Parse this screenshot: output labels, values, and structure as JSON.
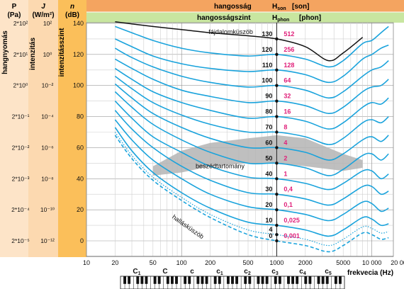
{
  "header": {
    "col_p_symbol": "P",
    "col_p_unit": "(Pa)",
    "col_j_symbol": "J",
    "col_j_unit": "(W/m²)",
    "col_n_symbol": "n",
    "col_n_unit": "(dB)",
    "loudness_label": "hangosság",
    "loudness_unit": "H",
    "loudness_sub": "son",
    "loudness_unit_bracket": "[son]",
    "level_label": "hangosságszint",
    "level_unit": "H",
    "level_sub": "phon",
    "level_unit_bracket": "[phon]"
  },
  "side_labels": {
    "pressure": "hangnyomás",
    "intensity": "intenzitás",
    "intensity_level": "intenzitásszint"
  },
  "left_columns": {
    "pressure_values": [
      "2*10²",
      "2*10¹",
      "2*10⁰",
      "2*10⁻¹",
      "2*10⁻²",
      "2*10⁻³",
      "2*10⁻⁴",
      "2*10⁻⁵"
    ],
    "intensity_values": [
      "10²",
      "10⁰",
      "10⁻²",
      "10⁻⁴",
      "10⁻⁶",
      "10⁻⁸",
      "10⁻¹⁰",
      "10⁻¹²"
    ]
  },
  "annotations": {
    "pain_threshold": "fájdalomküszöb",
    "speech_region": "beszédtartomány",
    "hearing_threshold": "hallásküszöb"
  },
  "piano": {
    "octave_labels": [
      "C1",
      "C",
      "c",
      "c1",
      "c2",
      "c3",
      "c4",
      "c5"
    ]
  },
  "colors": {
    "header_orange": "#f4a460",
    "header_green": "#c8e6a0",
    "col_p_bg": "#fde4c8",
    "col_j_bg": "#fcd9b0",
    "col_n_bg": "#fbbf5a",
    "curve_blue": "#1aa3dc",
    "pain_black": "#111111",
    "son_magenta": "#e0207a",
    "speech_gray": "#b4b4b4"
  },
  "chart_data": {
    "type": "line",
    "x_scale": "log",
    "xlim": [
      10,
      20000
    ],
    "ylim": [
      0,
      140
    ],
    "xlabel": "frekvecia (Hz)",
    "ylabel": "n (dB)",
    "x_ticks": [
      10,
      20,
      50,
      100,
      200,
      500,
      1000,
      2000,
      5000,
      10000,
      20000
    ],
    "x_tick_labels": [
      "10",
      "20",
      "50",
      "100",
      "200",
      "500",
      "1000",
      "2000",
      "5000",
      "10 000",
      "20 000"
    ],
    "y_ticks": [
      0,
      20,
      40,
      60,
      80,
      100,
      120,
      140
    ],
    "grid": true,
    "phon_levels": [
      130,
      120,
      110,
      100,
      90,
      80,
      70,
      60,
      50,
      40,
      30,
      20,
      10,
      4,
      0
    ],
    "phon_labels": [
      "130",
      "120",
      "110",
      "100",
      "90",
      "80",
      "70",
      "60",
      "50",
      "40",
      "30",
      "20",
      "10",
      "4",
      "0"
    ],
    "son_values": [
      "512",
      "256",
      "128",
      "64",
      "32",
      "16",
      "8",
      "4",
      "2",
      "1",
      "0,4",
      "0,1",
      "0,025",
      "0,001"
    ],
    "son_levels": [
      130,
      120,
      110,
      100,
      90,
      80,
      70,
      60,
      50,
      40,
      30,
      20,
      10,
      0
    ],
    "contour_x": [
      20,
      30,
      50,
      100,
      200,
      500,
      1000,
      2000,
      3500,
      5000,
      8000,
      10000,
      12500,
      15000
    ],
    "contours": [
      {
        "phon": 120,
        "y": [
          138,
          134,
          129,
          124,
          121,
          119,
          120,
          117,
          112,
          116,
          127,
          129,
          134,
          138
        ]
      },
      {
        "phon": 110,
        "y": [
          130,
          125,
          119,
          114,
          111,
          109,
          110,
          107,
          102,
          106,
          117,
          120,
          124,
          126
        ]
      },
      {
        "phon": 100,
        "y": [
          124,
          118,
          112,
          106,
          102,
          99,
          100,
          97,
          92,
          96,
          106,
          110,
          112,
          116
        ]
      },
      {
        "phon": 90,
        "y": [
          117,
          111,
          104,
          97,
          93,
          89,
          90,
          87,
          82,
          86,
          96,
          99,
          100,
          104
        ]
      },
      {
        "phon": 80,
        "y": [
          111,
          104,
          96,
          89,
          84,
          79,
          80,
          77,
          72,
          76,
          86,
          89,
          88,
          92
        ]
      },
      {
        "phon": 70,
        "y": [
          106,
          98,
          89,
          81,
          75,
          70,
          70,
          67,
          62,
          66,
          76,
          78,
          76,
          80
        ]
      },
      {
        "phon": 60,
        "y": [
          101,
          92,
          82,
          73,
          66,
          60,
          60,
          57,
          52,
          56,
          65,
          67,
          64,
          68
        ]
      },
      {
        "phon": 50,
        "y": [
          96,
          86,
          75,
          65,
          57,
          50,
          50,
          47,
          42,
          46,
          55,
          56,
          52,
          56
        ]
      },
      {
        "phon": 40,
        "y": [
          90,
          79,
          67,
          57,
          48,
          41,
          40,
          37,
          33,
          37,
          45,
          45,
          40,
          43
        ]
      },
      {
        "phon": 30,
        "y": [
          84,
          72,
          60,
          48,
          39,
          31,
          30,
          27,
          23,
          27,
          35,
          35,
          30,
          32
        ]
      },
      {
        "phon": 20,
        "y": [
          78,
          65,
          52,
          40,
          30,
          22,
          20,
          17,
          13,
          17,
          25,
          24,
          19,
          21
        ]
      },
      {
        "phon": 10,
        "y": [
          73,
          58,
          44,
          31,
          21,
          12,
          10,
          7,
          3,
          7,
          15,
          14,
          10,
          11
        ]
      }
    ],
    "threshold_4_phon": {
      "x": [
        20,
        30,
        50,
        100,
        200,
        500,
        1000,
        2000,
        3500,
        5000,
        8000,
        10000,
        12500,
        15000
      ],
      "y": [
        70,
        55,
        41,
        28,
        17,
        7,
        4,
        1,
        -3,
        1,
        9,
        8,
        5,
        6
      ]
    },
    "threshold_0_phon": {
      "x": [
        20,
        30,
        50,
        100,
        200,
        500,
        1000,
        2000,
        3500,
        5000,
        8000,
        10000,
        12500,
        15000
      ],
      "y": [
        68,
        53,
        39,
        26,
        15,
        4,
        0,
        -3,
        -7,
        -3,
        5,
        4,
        1,
        2
      ]
    },
    "pain_threshold_curve": {
      "x": [
        20,
        50,
        100,
        200,
        500,
        1000,
        2000,
        3500,
        5000,
        8000
      ],
      "y": [
        141,
        138,
        136,
        134,
        132,
        130,
        125,
        116,
        121,
        131
      ]
    },
    "speech_region": {
      "x": [
        50,
        100,
        200,
        500,
        1000,
        2000,
        5000,
        8000,
        8000,
        5000,
        2000,
        1000,
        500,
        200,
        100,
        50
      ],
      "y": [
        48,
        58,
        63,
        66,
        68,
        66,
        56,
        52,
        47,
        45,
        48,
        50,
        50,
        48,
        44,
        42
      ]
    }
  }
}
